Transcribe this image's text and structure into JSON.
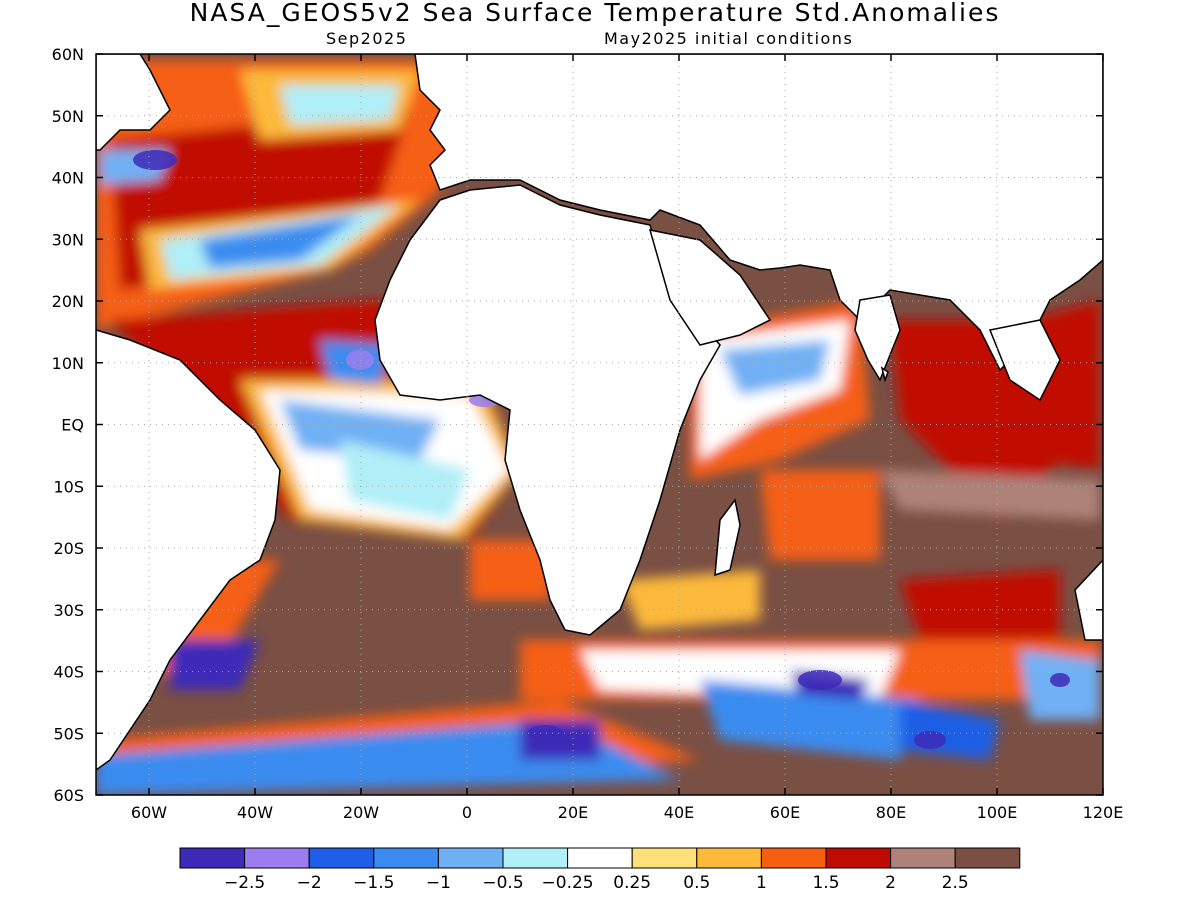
{
  "title": "NASA_GEOS5v2 Sea Surface Temperature Std.Anomalies",
  "subtitle_left": "Sep2025",
  "subtitle_right": "May2025 initial conditions",
  "map": {
    "lon_ticks": [
      "60W",
      "40W",
      "20W",
      "0",
      "20E",
      "40E",
      "60E",
      "80E",
      "100E",
      "120E"
    ],
    "lat_ticks": [
      "60N",
      "50N",
      "40N",
      "30N",
      "20N",
      "10N",
      "EQ",
      "10S",
      "20S",
      "30S",
      "40S",
      "50S",
      "60S"
    ],
    "lon_range": [
      -70,
      120
    ],
    "lat_range": [
      -60,
      60
    ],
    "grid": "dotted"
  },
  "colorbar": {
    "colors": [
      "#3d2ab8",
      "#9b7df0",
      "#1f5ee6",
      "#3a8cf0",
      "#6fb0f4",
      "#b0eef8",
      "#ffffff",
      "#fde07a",
      "#fcb93b",
      "#f65f12",
      "#c00b00",
      "#ae8278",
      "#7a4f44"
    ],
    "labels": [
      "-2.5",
      "-2",
      "-1.5",
      "-1",
      "-0.5",
      "-0.25",
      "0.25",
      "0.5",
      "1",
      "1.5",
      "2",
      "2.5"
    ]
  }
}
